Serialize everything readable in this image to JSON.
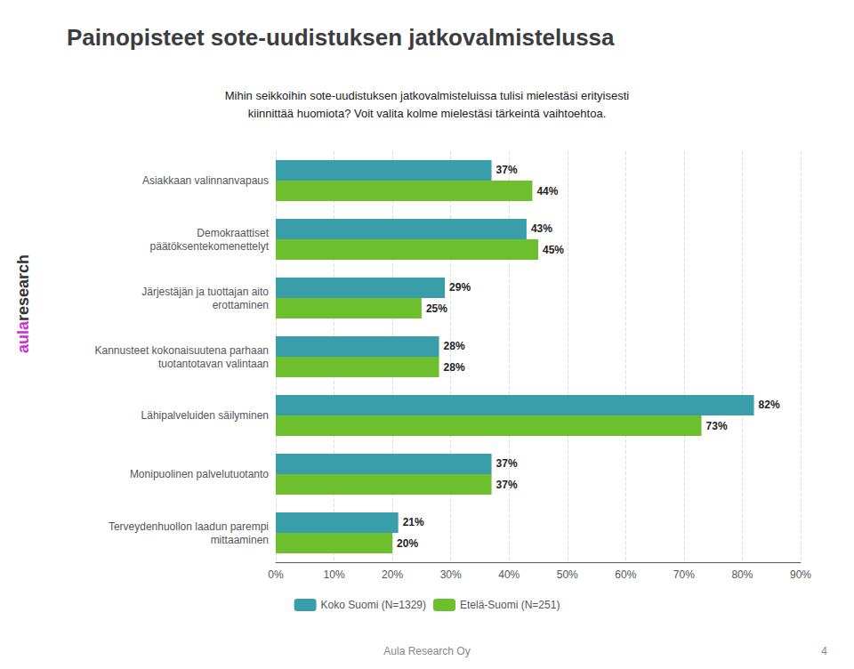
{
  "chart_data": {
    "type": "bar",
    "orientation": "horizontal",
    "title": "Painopisteet sote-uudistuksen jatkovalmistelussa",
    "subtitle": "Mihin seikkoihin sote-uudistuksen jatkovalmisteluissa tulisi mielestäsi erityisesti\nkiinnittää huomiota? Voit valita kolme mielestäsi tärkeintä vaihtoehtoa.",
    "categories": [
      "Asiakkaan valinnanvapaus",
      "Demokraattiset\npäätöksentekomenettelyt",
      "Järjestäjän ja tuottajan aito\nerottaminen",
      "Kannusteet kokonaisuutena parhaan\ntuotantotavan valintaan",
      "Lähipalveluiden säilyminen",
      "Monipuolinen palvelutuotanto",
      "Terveydenhuollon laadun parempi\nmittaaminen"
    ],
    "series": [
      {
        "name": "Koko Suomi (N=1329)",
        "color": "#3a9daa",
        "values": [
          37,
          43,
          29,
          28,
          82,
          37,
          21
        ],
        "value_labels": [
          "37%",
          "43%",
          "29%",
          "28%",
          "82%",
          "37%",
          "21%"
        ]
      },
      {
        "name": "Etelä-Suomi (N=251)",
        "color": "#6dbf2e",
        "values": [
          44,
          45,
          25,
          28,
          73,
          37,
          20
        ],
        "value_labels": [
          "44%",
          "45%",
          "25%",
          "28%",
          "73%",
          "37%",
          "20%"
        ]
      }
    ],
    "xlim": [
      0,
      90
    ],
    "xticks": [
      {
        "value": 0,
        "label": "0%"
      },
      {
        "value": 10,
        "label": "10%"
      },
      {
        "value": 20,
        "label": "20%"
      },
      {
        "value": 30,
        "label": "30%"
      },
      {
        "value": 40,
        "label": "40%"
      },
      {
        "value": 50,
        "label": "50%"
      },
      {
        "value": 60,
        "label": "60%"
      },
      {
        "value": 70,
        "label": "70%"
      },
      {
        "value": 80,
        "label": "80%"
      },
      {
        "value": 90,
        "label": "90%"
      }
    ],
    "grid": true,
    "legend": "bottom",
    "data_labels": true,
    "annotations": [
      "research",
      "aula",
      "Aula Research Oy",
      "4"
    ]
  }
}
